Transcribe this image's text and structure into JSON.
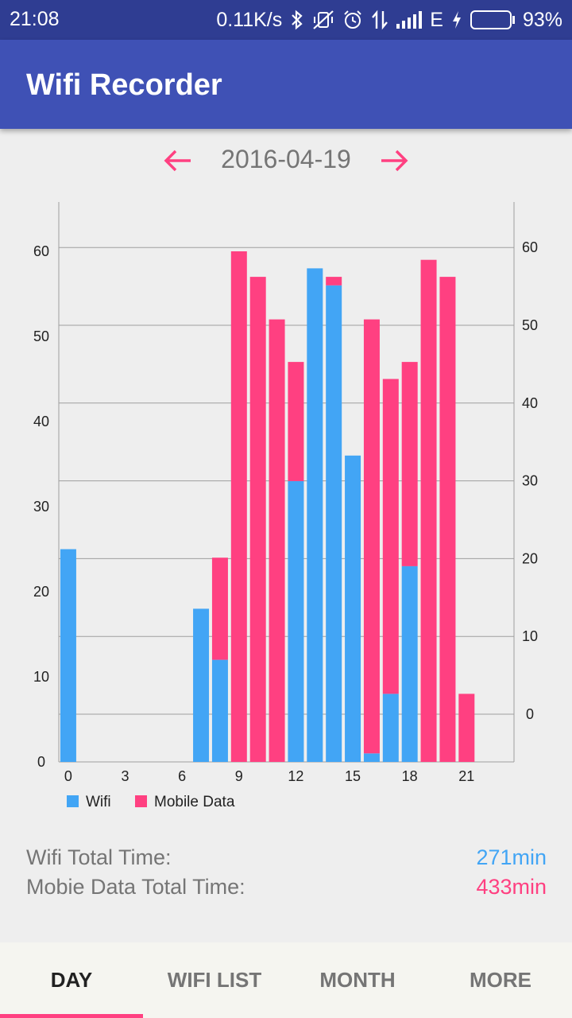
{
  "status_bar": {
    "time": "21:08",
    "net_speed": "0.11K/s",
    "network_type": "E",
    "battery": "93%",
    "battery_level": 0.93,
    "icons": [
      "bluetooth-icon",
      "vibrate-off-icon",
      "alarm-icon",
      "data-transfer-icon",
      "signal-icon",
      "charging-icon",
      "battery-icon"
    ]
  },
  "app": {
    "title": "Wifi Recorder"
  },
  "date_nav": {
    "date": "2016-04-19",
    "prev_icon": "arrow-left-icon",
    "next_icon": "arrow-right-icon"
  },
  "chart_data": {
    "type": "bar",
    "stacked": true,
    "x_ticks": [
      "0",
      "3",
      "6",
      "9",
      "12",
      "15",
      "18",
      "21"
    ],
    "left_axis": {
      "ticks": [
        "0",
        "10",
        "20",
        "30",
        "40",
        "50",
        "60"
      ]
    },
    "right_axis": {
      "ticks": [
        "0",
        "10",
        "20",
        "30",
        "40",
        "50",
        "60"
      ]
    },
    "hours": [
      0,
      7,
      8,
      9,
      10,
      11,
      12,
      13,
      14,
      15,
      16,
      17,
      18,
      19,
      20,
      21
    ],
    "series": [
      {
        "name": "Wifi",
        "color": "#42a5f5",
        "values": [
          25,
          18,
          12,
          0,
          0,
          0,
          33,
          58,
          56,
          36,
          1,
          8,
          23,
          0,
          0,
          0
        ]
      },
      {
        "name": "Mobile Data",
        "color": "#ff4081",
        "values": [
          0,
          0,
          12,
          60,
          57,
          52,
          14,
          0,
          1,
          0,
          51,
          37,
          24,
          59,
          57,
          8
        ]
      }
    ],
    "legend_position": "bottom-left",
    "grid": true
  },
  "totals": {
    "wifi_label": "Wifi Total Time:",
    "wifi_value": "271min",
    "mobile_label": "Mobie Data Total Time:",
    "mobile_value": "433min"
  },
  "tabs": [
    {
      "label": "DAY",
      "active": true
    },
    {
      "label": "WIFI LIST",
      "active": false
    },
    {
      "label": "MONTH",
      "active": false
    },
    {
      "label": "MORE",
      "active": false
    }
  ],
  "colors": {
    "primary": "#3f51b5",
    "status": "#2f3d92",
    "accent": "#ff4081",
    "wifi": "#42a5f5"
  }
}
